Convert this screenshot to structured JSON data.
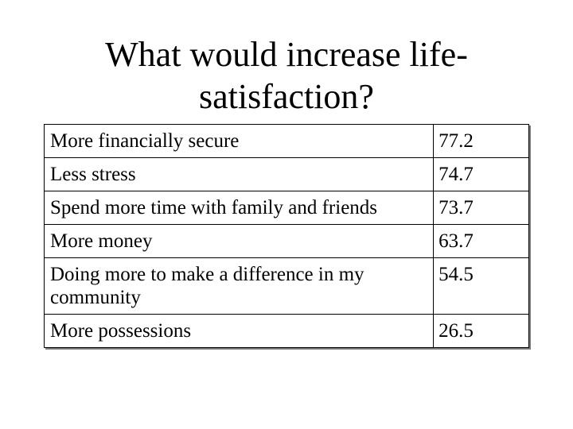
{
  "slide": {
    "title": "What would increase life-satisfaction?"
  },
  "table": {
    "rows": [
      {
        "label": "More financially secure",
        "value": "77.2"
      },
      {
        "label": "Less stress",
        "value": "74.7"
      },
      {
        "label": "Spend more time with family and friends",
        "value": "73.7"
      },
      {
        "label": "More money",
        "value": "63.7"
      },
      {
        "label": "Doing more to make a difference in my community",
        "value": "54.5"
      },
      {
        "label": "More possessions",
        "value": "26.5"
      }
    ]
  }
}
